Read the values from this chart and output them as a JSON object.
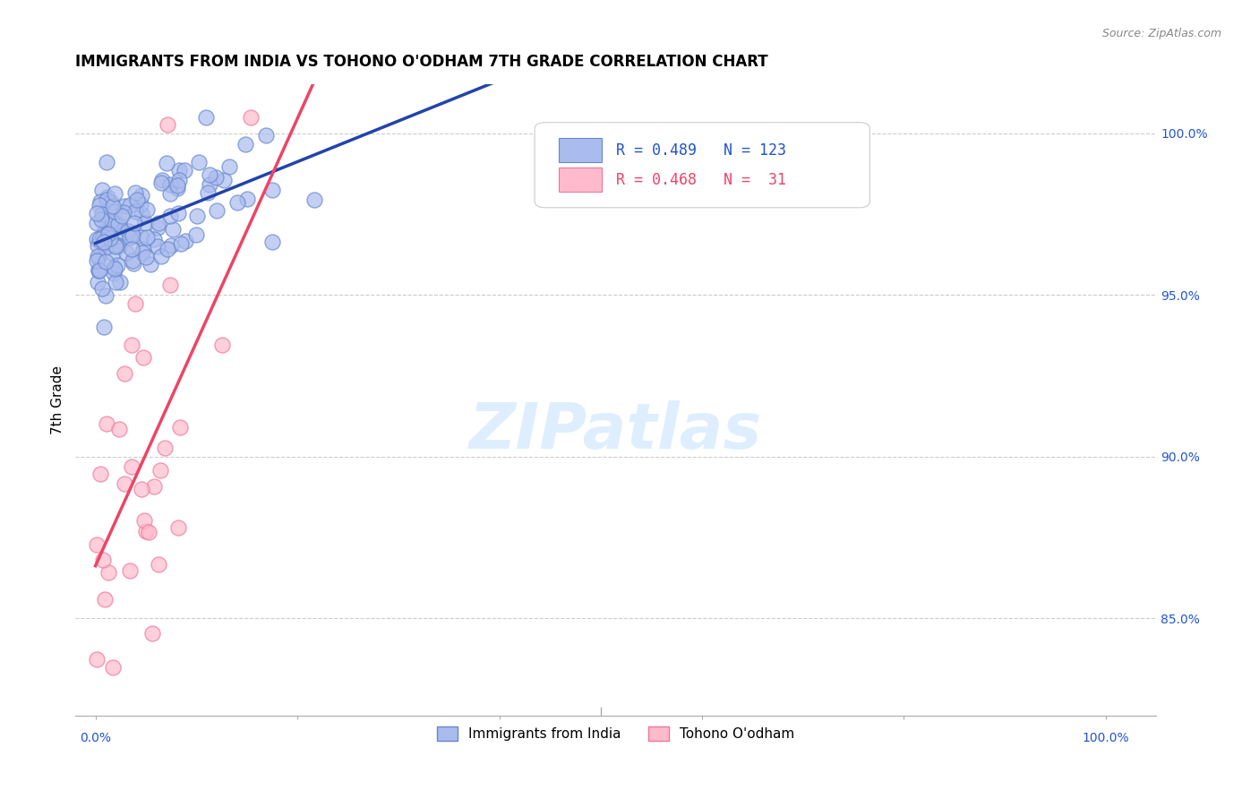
{
  "title": "IMMIGRANTS FROM INDIA VS TOHONO O'ODHAM 7TH GRADE CORRELATION CHART",
  "source": "Source: ZipAtlas.com",
  "ylabel": "7th Grade",
  "yticks": [
    "85.0%",
    "90.0%",
    "95.0%",
    "100.0%"
  ],
  "ytick_vals": [
    0.85,
    0.9,
    0.95,
    1.0
  ],
  "legend1_label": "Immigrants from India",
  "legend2_label": "Tohono O'odham",
  "r1": 0.489,
  "n1": 123,
  "r2": 0.468,
  "n2": 31,
  "blue_face": "#aabbee",
  "blue_edge": "#6688cc",
  "blue_line": "#2244aa",
  "pink_face": "#ffbbcc",
  "pink_edge": "#ee7799",
  "pink_line": "#ee4466",
  "label_color": "#2255cc",
  "grid_color": "#cccccc",
  "watermark_color": "#ddeeff",
  "source_color": "#888888",
  "xlim": [
    -0.02,
    1.05
  ],
  "ylim": [
    0.82,
    1.015
  ]
}
